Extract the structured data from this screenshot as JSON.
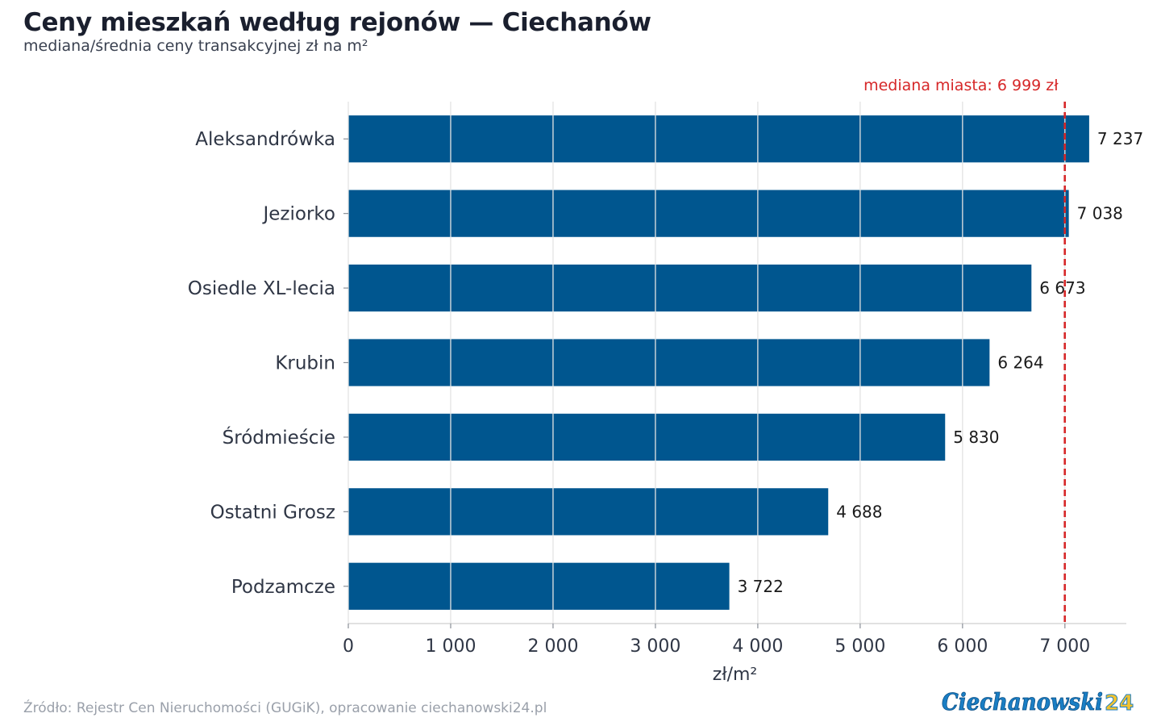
{
  "header": {
    "title": "Ceny mieszkań według rejonów — Ciechanów",
    "subtitle": "mediana/średnia ceny transakcyjnej zł na m²"
  },
  "footer": {
    "source": "Źródło: Rejestr Cen Nieruchomości (GUGiK), opracowanie ciechanowski24.pl"
  },
  "logo": {
    "text": "Ciechanowski",
    "accent": "24",
    "color": "#1a7ec4",
    "accent_color": "#f2c230"
  },
  "colors": {
    "bar": "#00568f",
    "reference_line": "#d62728",
    "grid": "#e3e3e3",
    "axis": "#cfcfcf",
    "label": "#2f3645"
  },
  "chart_data": {
    "type": "bar",
    "orientation": "horizontal",
    "categories": [
      "Aleksandrówka",
      "Jeziorko",
      "Osiedle XL-lecia",
      "Krubin",
      "Śródmieście",
      "Ostatni Grosz",
      "Podzamcze"
    ],
    "values": [
      7237,
      7038,
      6673,
      6264,
      5830,
      4688,
      3722
    ],
    "data_labels": [
      "7 237",
      "7 038",
      "6 673",
      "6 264",
      "5 830",
      "4 688",
      "3 722"
    ],
    "xlabel": "zł/m²",
    "ylabel": "",
    "xlim": [
      0,
      7600
    ],
    "xticks": [
      0,
      1000,
      2000,
      3000,
      4000,
      5000,
      6000,
      7000
    ],
    "xtick_labels": [
      "0",
      "1 000",
      "2 000",
      "3 000",
      "4 000",
      "5 000",
      "6 000",
      "7 000"
    ],
    "grid": true,
    "reference_line": {
      "value": 6999,
      "label": "mediana miasta: 6 999 zł",
      "style": "dashed"
    }
  }
}
